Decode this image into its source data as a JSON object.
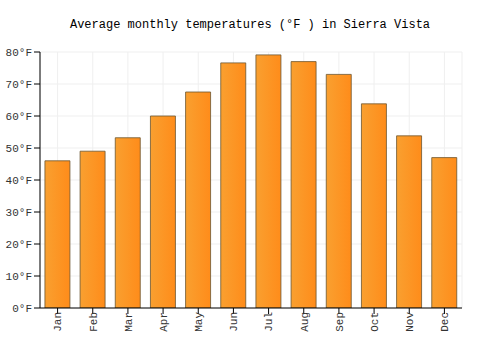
{
  "chart_data": {
    "type": "bar",
    "title": "Average monthly temperatures (°F ) in Sierra Vista",
    "categories": [
      "Jan",
      "Feb",
      "Mar",
      "Apr",
      "May",
      "Jun",
      "Jul",
      "Aug",
      "Sep",
      "Oct",
      "Nov",
      "Dec"
    ],
    "values": [
      46,
      49,
      53.2,
      60,
      67.5,
      76.6,
      79.1,
      77,
      73,
      63.8,
      53.8,
      47
    ],
    "color": "#f9a030",
    "ylim": [
      0,
      80
    ],
    "yticks": [
      {
        "value": 0,
        "label": "0°F"
      },
      {
        "value": 10,
        "label": "10°F"
      },
      {
        "value": 20,
        "label": "20°F"
      },
      {
        "value": 30,
        "label": "30°F"
      },
      {
        "value": 40,
        "label": "40°F"
      },
      {
        "value": 50,
        "label": "50°F"
      },
      {
        "value": 60,
        "label": "60°F"
      },
      {
        "value": 70,
        "label": "70°F"
      },
      {
        "value": 80,
        "label": "80°F"
      }
    ],
    "grid": true
  }
}
